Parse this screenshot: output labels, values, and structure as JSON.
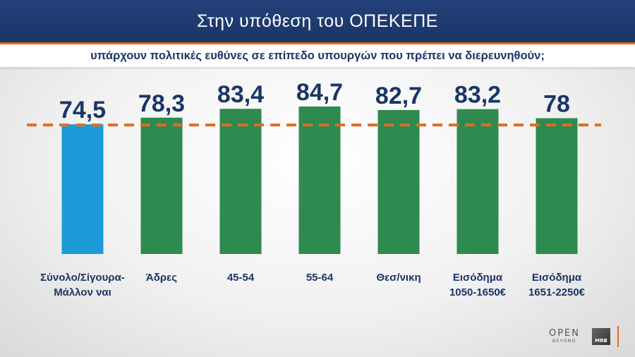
{
  "header": {
    "title": "Στην υπόθεση του ΟΠΕΚΕΠΕ",
    "subtitle": "υπάρχουν πολιτικές ευθύνες σε επίπεδο υπουργών που πρέπει να διερευνηθούν;"
  },
  "colors": {
    "highlight_bar": "#1b9bd7",
    "bar": "#2e8a4f",
    "reference_line": "#e56a1f",
    "text": "#1b3566"
  },
  "chart_data": {
    "type": "bar",
    "title": "Στην υπόθεση του ΟΠΕΚΕΠΕ",
    "subtitle": "υπάρχουν πολιτικές ευθύνες σε επίπεδο υπουργών που πρέπει να διερευνηθούν;",
    "categories": [
      [
        "Σύνολο/Σίγουρα-",
        "Μάλλον ναι"
      ],
      [
        "Άδρες"
      ],
      [
        "45-54"
      ],
      [
        "55-64"
      ],
      [
        "Θεσ/νικη"
      ],
      [
        "Εισόδημα",
        "1050-1650€"
      ],
      [
        "Εισόδημα",
        "1651-2250€"
      ]
    ],
    "values": [
      74.5,
      78.3,
      83.4,
      84.7,
      82.7,
      83.2,
      78
    ],
    "value_labels": [
      "74,5",
      "78,3",
      "83,4",
      "84,7",
      "82,7",
      "83,2",
      "78"
    ],
    "highlight_index": 0,
    "reference_line": 74.5,
    "reference_line_style": "dashed",
    "ylim": [
      0,
      84.7
    ],
    "grid": false,
    "legend": "none",
    "xlabel": "",
    "ylabel": ""
  },
  "logos": {
    "channel": "OPEN",
    "channel_sub": "BEYOND",
    "pollster": "MRB"
  }
}
